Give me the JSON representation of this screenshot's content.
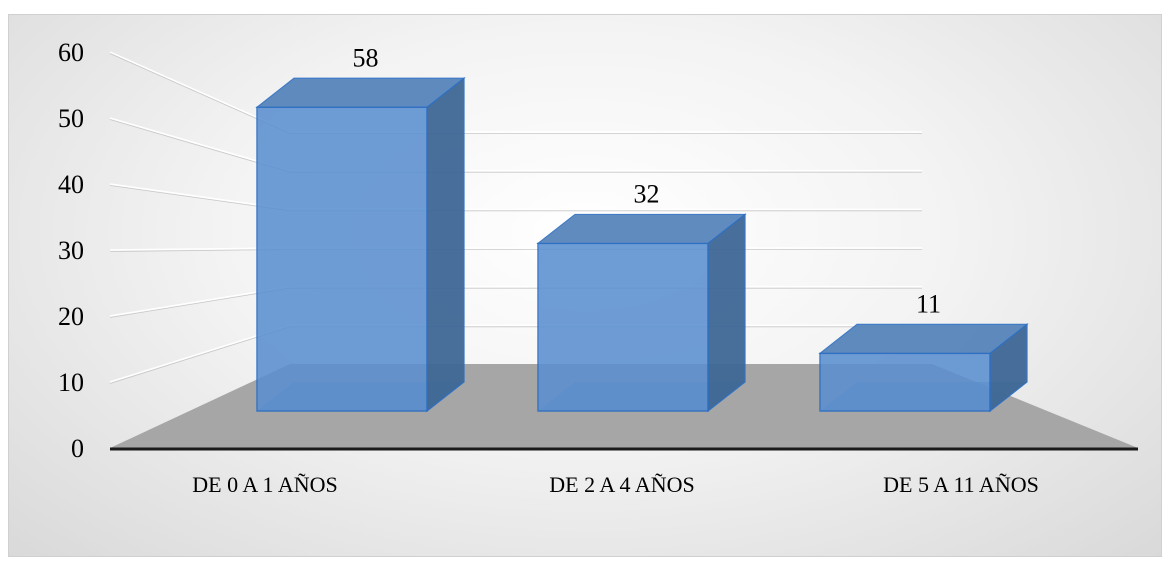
{
  "chart_data": {
    "type": "bar",
    "style": "3d-column",
    "categories": [
      "DE 0 A 1 AÑOS",
      "DE 2 A 4 AÑOS",
      "DE 5 A 11 AÑOS"
    ],
    "values": [
      58,
      32,
      11
    ],
    "data_labels": [
      "58",
      "32",
      "11"
    ],
    "ylim": [
      0,
      60
    ],
    "yticks": [
      "0",
      "10",
      "20",
      "30",
      "40",
      "50",
      "60"
    ],
    "grid": true,
    "legend": "none",
    "colors": {
      "bar_front": "#5b8fcf",
      "bar_side": "#3f6896",
      "bar_top": "#4f7fb8",
      "bar_edge": "#2e6fc2",
      "floor": "#a6a6a6",
      "gridline": "#ffffff"
    }
  }
}
